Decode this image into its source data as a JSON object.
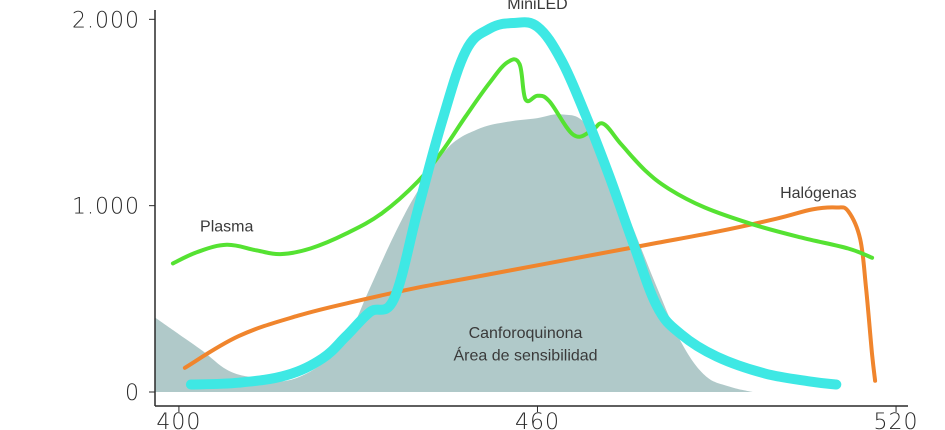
{
  "chart_data": {
    "type": "line",
    "title": "",
    "xlabel": "",
    "ylabel": "",
    "xlim": [
      396,
      522
    ],
    "ylim": [
      0,
      2050
    ],
    "x_ticks": [
      {
        "value": 400,
        "label": "400"
      },
      {
        "value": 460,
        "label": "460"
      },
      {
        "value": 520,
        "label": "520"
      }
    ],
    "y_ticks": [
      {
        "value": 0,
        "label": "0"
      },
      {
        "value": 1000,
        "label": "1.000"
      },
      {
        "value": 2000,
        "label": "2.000"
      }
    ],
    "grid": false,
    "area": {
      "name": "Canforoquinona",
      "sublabel": "Área de sensibilidad",
      "color": "#b0c9c9",
      "points": [
        [
          396,
          400
        ],
        [
          400,
          310
        ],
        [
          404,
          220
        ],
        [
          408,
          120
        ],
        [
          412,
          80
        ],
        [
          418,
          60
        ],
        [
          424,
          150
        ],
        [
          428,
          280
        ],
        [
          432,
          560
        ],
        [
          436,
          840
        ],
        [
          440,
          1080
        ],
        [
          445,
          1310
        ],
        [
          450,
          1410
        ],
        [
          455,
          1450
        ],
        [
          460,
          1470
        ],
        [
          464,
          1490
        ],
        [
          468,
          1440
        ],
        [
          472,
          1190
        ],
        [
          476,
          880
        ],
        [
          480,
          560
        ],
        [
          484,
          270
        ],
        [
          488,
          90
        ],
        [
          492,
          30
        ],
        [
          496,
          0
        ]
      ],
      "label_at": [
        458,
        290
      ],
      "sublabel_at": [
        458,
        170
      ]
    },
    "series": [
      {
        "name": "MiniLED",
        "color": "#3ee8e4",
        "width": 10,
        "points": [
          [
            402,
            40
          ],
          [
            410,
            50
          ],
          [
            418,
            90
          ],
          [
            424,
            180
          ],
          [
            428,
            300
          ],
          [
            432,
            430
          ],
          [
            436,
            500
          ],
          [
            440,
            980
          ],
          [
            444,
            1450
          ],
          [
            448,
            1830
          ],
          [
            452,
            1950
          ],
          [
            456,
            1980
          ],
          [
            460,
            1960
          ],
          [
            464,
            1780
          ],
          [
            468,
            1490
          ],
          [
            472,
            1160
          ],
          [
            476,
            800
          ],
          [
            480,
            460
          ],
          [
            484,
            310
          ],
          [
            490,
            190
          ],
          [
            498,
            100
          ],
          [
            506,
            55
          ],
          [
            510,
            40
          ]
        ],
        "label": "MiniLED",
        "label_at": [
          460,
          2055
        ]
      },
      {
        "name": "Plasma",
        "color": "#55e232",
        "width": 4,
        "points": [
          [
            399,
            690
          ],
          [
            403,
            750
          ],
          [
            408,
            790
          ],
          [
            413,
            760
          ],
          [
            417,
            740
          ],
          [
            422,
            770
          ],
          [
            428,
            850
          ],
          [
            434,
            960
          ],
          [
            440,
            1130
          ],
          [
            444,
            1290
          ],
          [
            448,
            1480
          ],
          [
            452,
            1660
          ],
          [
            455,
            1770
          ],
          [
            457,
            1760
          ],
          [
            458,
            1570
          ],
          [
            460,
            1590
          ],
          [
            462,
            1560
          ],
          [
            466,
            1380
          ],
          [
            469,
            1400
          ],
          [
            471,
            1440
          ],
          [
            474,
            1330
          ],
          [
            478,
            1190
          ],
          [
            482,
            1090
          ],
          [
            488,
            990
          ],
          [
            496,
            900
          ],
          [
            504,
            830
          ],
          [
            512,
            770
          ],
          [
            516,
            720
          ]
        ],
        "label": "Plasma",
        "label_at": [
          408,
          860
        ]
      },
      {
        "name": "Halógenas",
        "color": "#f0852d",
        "width": 4,
        "points": [
          [
            401,
            130
          ],
          [
            410,
            300
          ],
          [
            420,
            410
          ],
          [
            430,
            490
          ],
          [
            440,
            560
          ],
          [
            450,
            620
          ],
          [
            460,
            680
          ],
          [
            470,
            740
          ],
          [
            480,
            800
          ],
          [
            490,
            860
          ],
          [
            500,
            930
          ],
          [
            506,
            980
          ],
          [
            510,
            990
          ],
          [
            512,
            970
          ],
          [
            514,
            820
          ],
          [
            515,
            550
          ],
          [
            516,
            200
          ],
          [
            516.5,
            60
          ]
        ],
        "label": "Halógenas",
        "label_at": [
          507,
          1040
        ]
      }
    ]
  }
}
